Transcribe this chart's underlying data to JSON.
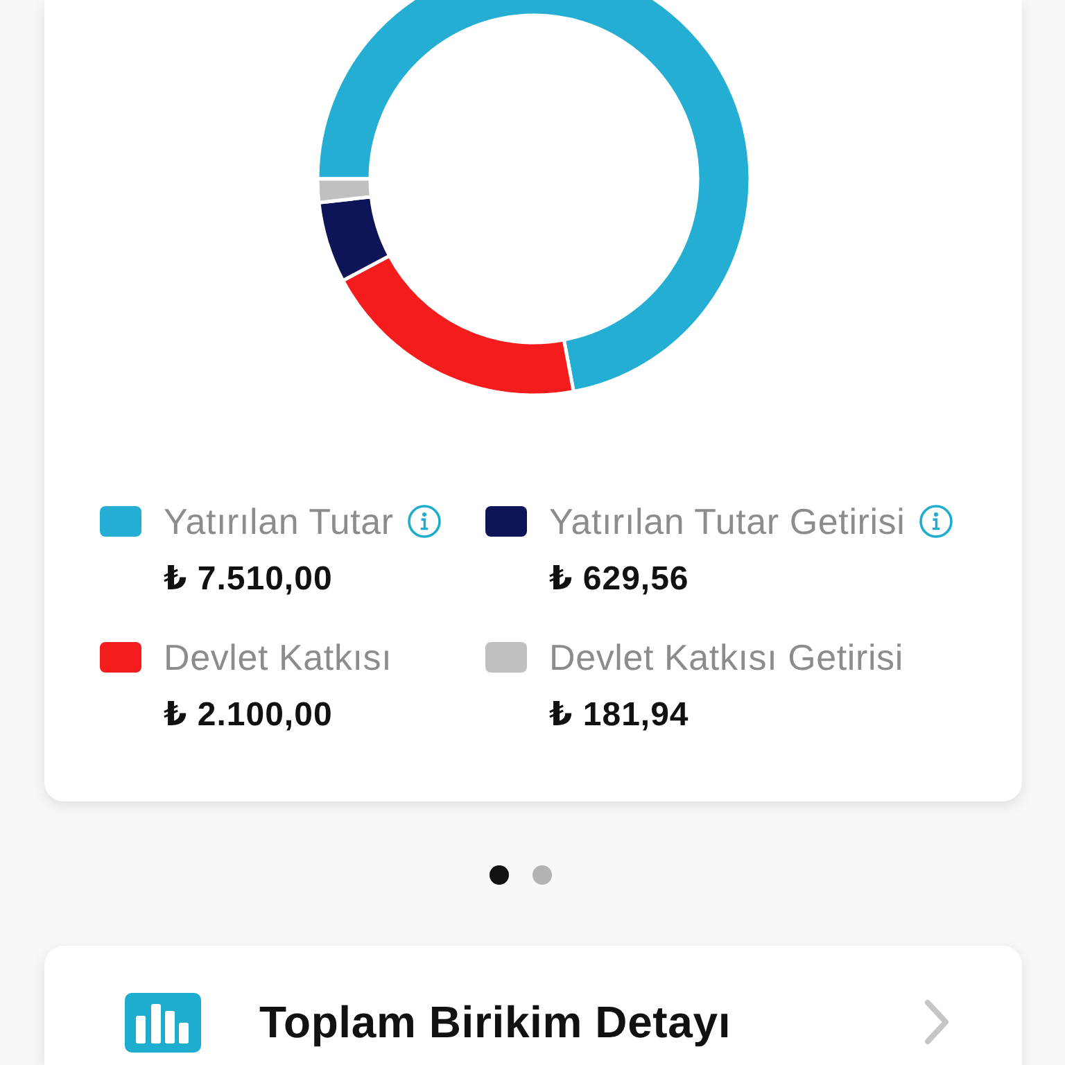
{
  "chart_data": {
    "type": "donut",
    "categories": [
      "Yatırılan Tutar",
      "Devlet Katkısı",
      "Yatırılan Tutar Getirisi",
      "Devlet Katkısı Getirisi"
    ],
    "values": [
      7510.0,
      2100.0,
      629.56,
      181.94
    ],
    "colors": [
      "#25aed3",
      "#f41c1c",
      "#0d1458",
      "#c0c0c0"
    ],
    "value_labels": [
      "₺ 7.510,00",
      "₺ 2.100,00",
      "₺ 629,56",
      "₺ 181,94"
    ],
    "legend": "bottom",
    "annotations": [
      "Toplam Birikim Detayı"
    ]
  }
}
